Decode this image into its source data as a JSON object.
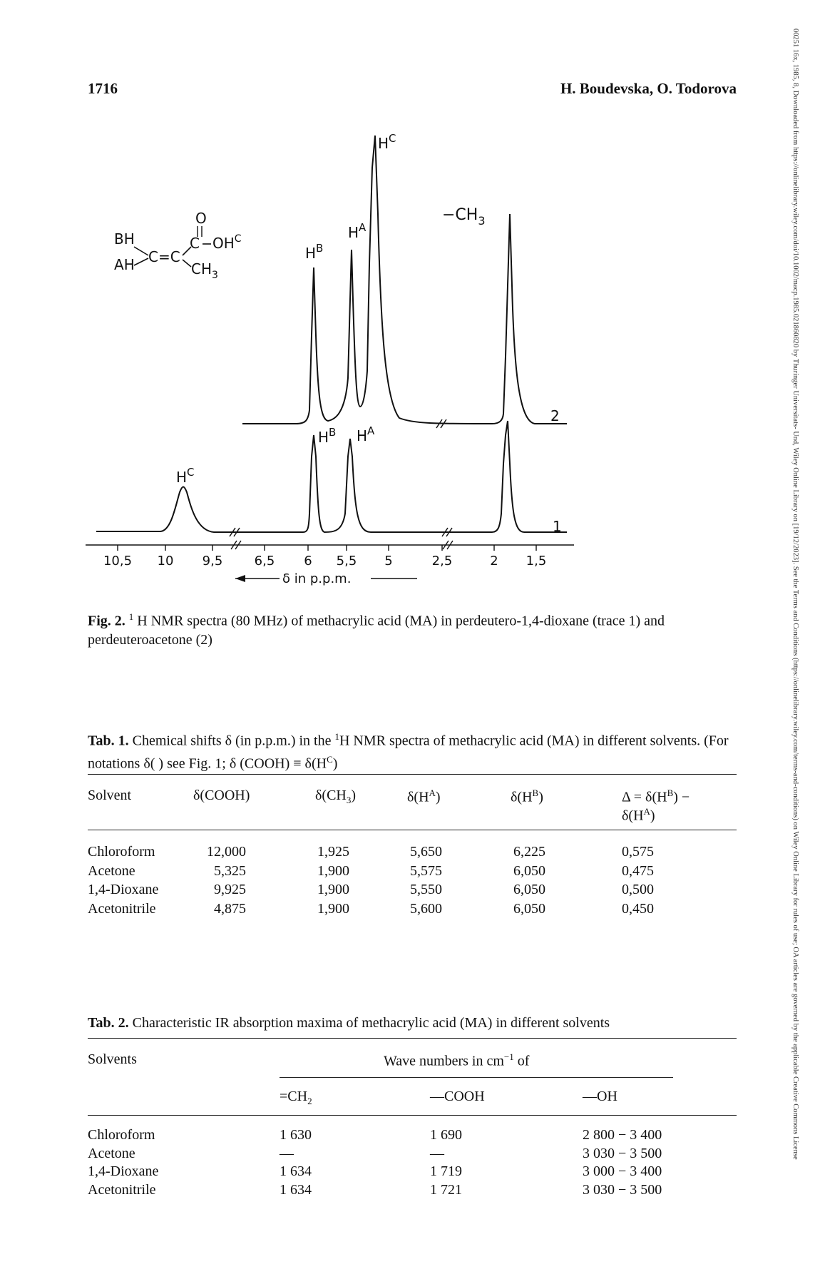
{
  "header": {
    "page_number": "1716",
    "authors": "H. Boudevska, O. Todorova"
  },
  "side_note": "00251 16x, 1985, 8, Downloaded from https://onlinelibrary.wiley.com/doi/10.1002/macp.1985.021860820 by Thuringer Universitats- Und, Wiley Online Library on [19/12/2023]. See the Terms and Conditions (https://onlinelibrary.wiley.com/terms-and-conditions) on Wiley Online Library for rules of use; OA articles are governed by the applicable Creative Commons License",
  "figure": {
    "structure": {
      "hb": "B",
      "ha": "A",
      "h1": "H",
      "h2": "H",
      "o": "O",
      "oh": "OH",
      "oh_sup": "C",
      "ch3": "CH",
      "ch3_sub": "3",
      "cc": "C=C",
      "c": "C"
    },
    "peak_labels": {
      "hc_top": "H",
      "hc_top_sup": "C",
      "ha_top": "H",
      "ha_top_sup": "A",
      "hb_top": "H",
      "hb_top_sup": "B",
      "ch3_top": "−CH",
      "ch3_top_sub": "3",
      "hb_bot": "H",
      "hb_bot_sup": "B",
      "ha_bot": "H",
      "ha_bot_sup": "A",
      "hc_bot": "H",
      "hc_bot_sup": "C"
    },
    "trace_numbers": [
      "2",
      "1"
    ],
    "axis_ticks": [
      "10,5",
      "10",
      "9,5",
      "6,5",
      "6",
      "5,5",
      "5",
      "2,5",
      "2",
      "1,5"
    ],
    "axis_label": "δ in p.p.m.",
    "caption_label": "Fig. 2.",
    "caption_text": " H NMR spectra (80 MHz) of methacrylic acid (MA) in perdeutero-1,4-dioxane (trace 1) and perdeuteroacetone (2)",
    "caption_sup": "1"
  },
  "table1": {
    "caption_label": "Tab. 1.",
    "caption_part1": "Chemical shifts δ (in p.p.m.) in the",
    "caption_sup1": "1",
    "caption_part2": "H NMR spectra of methacrylic acid (MA) in different solvents. (For notations δ( ) see Fig. 1; δ (COOH) ≡ δ(H",
    "caption_sup2": "C",
    "caption_end": ")",
    "headers": {
      "solvent": "Solvent",
      "cooh": "δ(COOH)",
      "ch3": "δ(CH",
      "ch3_sub": "3",
      "ha": "δ(H",
      "ha_sup": "A",
      "hb": "δ(H",
      "hb_sup": "B",
      "delta1": "Δ = δ(H",
      "delta1_sup": "B",
      "delta1_end": ") −",
      "delta2": "δ(H",
      "delta2_sup": "A",
      "close": ")"
    },
    "rows": [
      {
        "solvent": "Chloroform",
        "cooh": "12,000",
        "ch3": "1,925",
        "ha": "5,650",
        "hb": "6,225",
        "delta": "0,575"
      },
      {
        "solvent": "Acetone",
        "cooh": "5,325",
        "ch3": "1,900",
        "ha": "5,575",
        "hb": "6,050",
        "delta": "0,475"
      },
      {
        "solvent": "1,4-Dioxane",
        "cooh": "9,925",
        "ch3": "1,900",
        "ha": "5,550",
        "hb": "6,050",
        "delta": "0,500"
      },
      {
        "solvent": "Acetonitrile",
        "cooh": "4,875",
        "ch3": "1,900",
        "ha": "5,600",
        "hb": "6,050",
        "delta": "0,450"
      }
    ]
  },
  "table2": {
    "caption_label": "Tab. 2.",
    "caption_text": "Characteristic IR absorption maxima of methacrylic acid (MA) in different solvents",
    "headers": {
      "solvents": "Solvents",
      "wave": "Wave numbers in cm",
      "wave_sup": "−1",
      "wave_end": " of",
      "ch2": "=CH",
      "ch2_sub": "2",
      "cooh": "—COOH",
      "oh": "—OH"
    },
    "rows": [
      {
        "solvent": "Chloroform",
        "ch2": "1 630",
        "cooh": "1 690",
        "oh": "2 800 − 3 400"
      },
      {
        "solvent": "Acetone",
        "ch2": "—",
        "cooh": "—",
        "oh": "3 030 − 3 500"
      },
      {
        "solvent": "1,4-Dioxane",
        "ch2": "1 634",
        "cooh": "1 719",
        "oh": "3 000 − 3 400"
      },
      {
        "solvent": "Acetonitrile",
        "ch2": "1 634",
        "cooh": "1 721",
        "oh": "3 030 − 3 500"
      }
    ]
  }
}
